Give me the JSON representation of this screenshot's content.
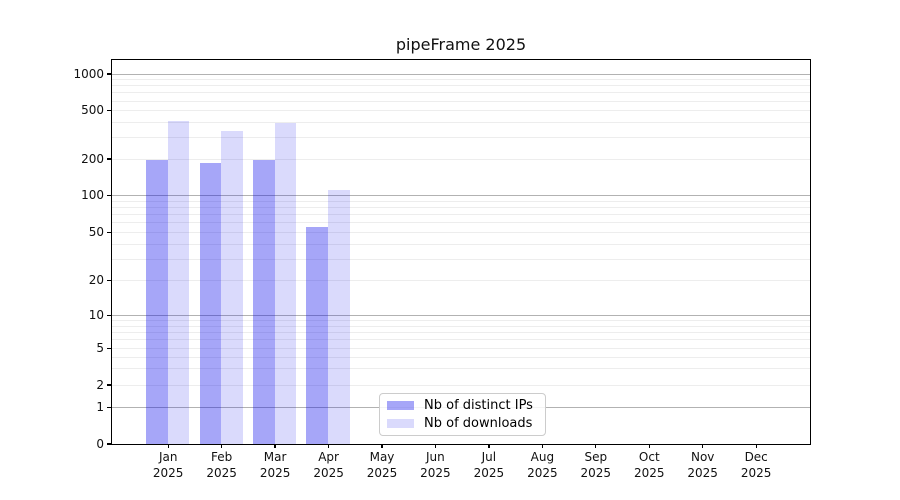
{
  "title": "pipeFrame 2025",
  "figure_background": "#ffffff",
  "chart_data": {
    "type": "bar",
    "title": "pipeFrame 2025",
    "xlabel": "",
    "ylabel": "",
    "categories": [
      "Jan",
      "Feb",
      "Mar",
      "Apr",
      "May",
      "Jun",
      "Jul",
      "Aug",
      "Sep",
      "Oct",
      "Nov",
      "Dec"
    ],
    "category_year_label": "2025",
    "series": [
      {
        "name": "Nb of distinct IPs",
        "color": "rgba(0,0,235,0.35)",
        "color_on_white": "#aaaaf9",
        "values": [
          195,
          185,
          195,
          55,
          0,
          0,
          0,
          0,
          0,
          0,
          0,
          0
        ]
      },
      {
        "name": "Nb of downloads",
        "color": "rgba(0,0,235,0.145)",
        "color_on_white": "#dadafa",
        "values": [
          410,
          335,
          395,
          110,
          0,
          0,
          0,
          0,
          0,
          0,
          0,
          0
        ]
      }
    ],
    "yscale": "symlog",
    "yticks": [
      0,
      1,
      2,
      5,
      10,
      20,
      50,
      100,
      200,
      500,
      1000
    ],
    "ytick_labels": [
      "0",
      "1",
      "2",
      "5",
      "10",
      "20",
      "50",
      "100",
      "200",
      "500",
      "1000"
    ],
    "ylim": [
      0,
      1300
    ],
    "grid": "horizontal major (powers of 10, gray) + minor (light gray)",
    "grid_major_values": [
      1,
      10,
      100,
      1000
    ],
    "grid_minor_color": "#ededed",
    "grid_major_color": "#b2b2b2",
    "legend_position": "inside axes, lower center-left",
    "legend_border_color": "#cccccc"
  },
  "legend": {
    "items": [
      {
        "label": "Nb of distinct IPs"
      },
      {
        "label": "Nb of downloads"
      }
    ]
  }
}
